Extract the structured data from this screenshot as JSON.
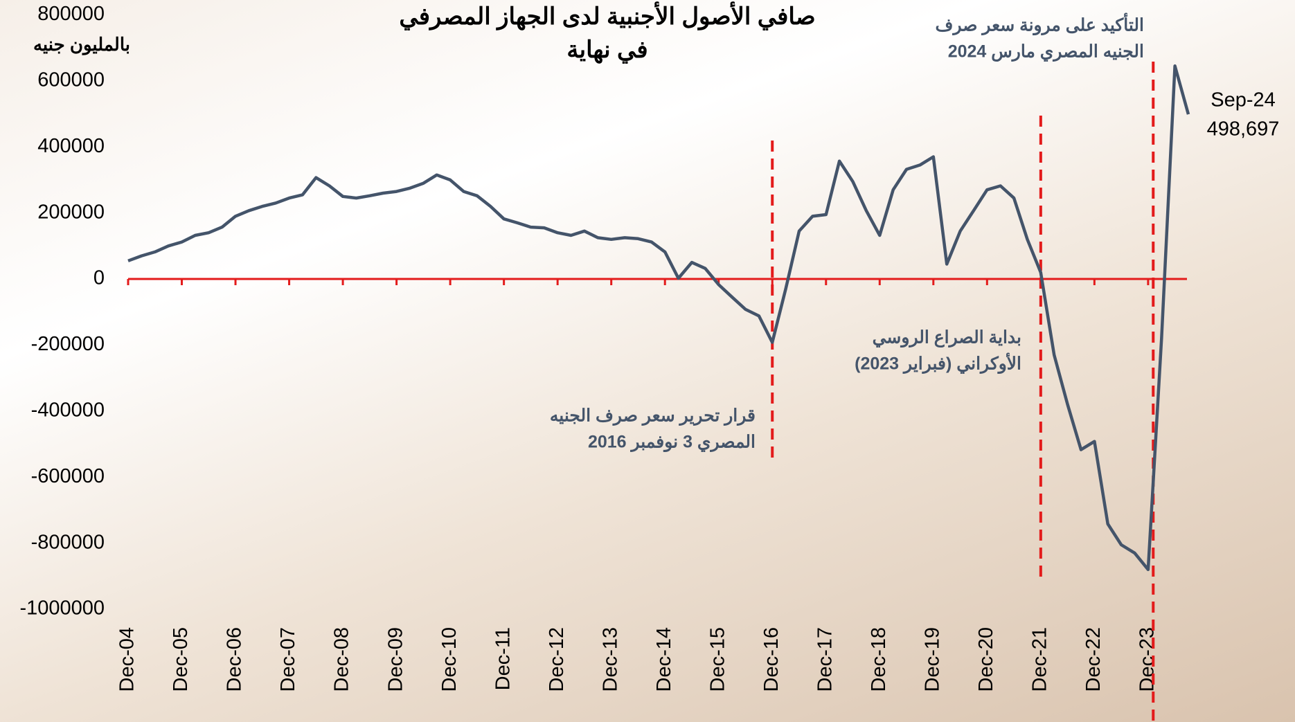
{
  "chart_data": {
    "type": "line",
    "title": [
      "صافي الأصول الأجنبية لدى الجهاز المصرفي",
      "في نهاية"
    ],
    "y_label": "بالمليون جنيه",
    "x": [
      "Dec-04",
      "Mar-05",
      "Jun-05",
      "Sep-05",
      "Dec-05",
      "Mar-06",
      "Jun-06",
      "Sep-06",
      "Dec-06",
      "Mar-07",
      "Jun-07",
      "Sep-07",
      "Dec-07",
      "Mar-08",
      "Jun-08",
      "Sep-08",
      "Dec-08",
      "Mar-09",
      "Jun-09",
      "Sep-09",
      "Dec-09",
      "Mar-10",
      "Jun-10",
      "Sep-10",
      "Dec-10",
      "Mar-11",
      "Jun-11",
      "Sep-11",
      "Dec-11",
      "Mar-12",
      "Jun-12",
      "Sep-12",
      "Dec-12",
      "Mar-13",
      "Jun-13",
      "Sep-13",
      "Dec-13",
      "Mar-14",
      "Jun-14",
      "Sep-14",
      "Dec-14",
      "Mar-15",
      "Jun-15",
      "Sep-15",
      "Dec-15",
      "Mar-16",
      "Jun-16",
      "Sep-16",
      "Dec-16",
      "Mar-17",
      "Jun-17",
      "Sep-17",
      "Dec-17",
      "Mar-18",
      "Jun-18",
      "Sep-18",
      "Dec-18",
      "Mar-19",
      "Jun-19",
      "Sep-19",
      "Dec-19",
      "Mar-20",
      "Jun-20",
      "Sep-20",
      "Dec-20",
      "Mar-21",
      "Jun-21",
      "Sep-21",
      "Dec-21",
      "Mar-22",
      "Jun-22",
      "Sep-22",
      "Dec-22",
      "Mar-23",
      "Jun-23",
      "Sep-23",
      "Dec-23",
      "Mar-24",
      "Jun-24",
      "Sep-24"
    ],
    "series": [
      {
        "color": "#44546a",
        "values": [
          55000,
          70000,
          82000,
          100000,
          112000,
          132000,
          140000,
          157000,
          190000,
          207000,
          220000,
          230000,
          245000,
          255000,
          307000,
          282000,
          250000,
          245000,
          252000,
          260000,
          265000,
          275000,
          290000,
          315000,
          300000,
          265000,
          252000,
          220000,
          182000,
          170000,
          157000,
          155000,
          140000,
          132000,
          145000,
          125000,
          120000,
          125000,
          122000,
          112000,
          82000,
          2000,
          50000,
          32000,
          -17000,
          -55000,
          -92000,
          -112000,
          -192000,
          -30000,
          145000,
          190000,
          195000,
          357000,
          295000,
          207000,
          132000,
          270000,
          332000,
          345000,
          370000,
          45000,
          145000,
          207000,
          270000,
          282000,
          245000,
          120000,
          20000,
          -230000,
          -380000,
          -517000,
          -492000,
          -742000,
          -805000,
          -830000,
          -880000,
          -180000,
          645000,
          498697
        ],
        "value_labels": [
          null,
          null,
          null,
          null,
          null,
          null,
          null,
          null,
          null,
          null,
          null,
          null,
          null,
          null,
          null,
          null,
          null,
          null,
          null,
          null,
          null,
          null,
          null,
          null,
          null,
          null,
          null,
          null,
          null,
          null,
          null,
          null,
          null,
          null,
          null,
          null,
          null,
          null,
          null,
          null,
          null,
          null,
          null,
          null,
          null,
          null,
          null,
          null,
          null,
          null,
          null,
          null,
          null,
          null,
          null,
          null,
          null,
          null,
          null,
          null,
          null,
          null,
          null,
          null,
          null,
          null,
          null,
          null,
          null,
          null,
          null,
          null,
          null,
          null,
          null,
          null,
          null,
          null,
          null,
          "498,697"
        ]
      }
    ],
    "xticks": [
      "Dec-04",
      "Dec-05",
      "Dec-06",
      "Dec-07",
      "Dec-08",
      "Dec-09",
      "Dec-10",
      "Dec-11",
      "Dec-12",
      "Dec-13",
      "Dec-14",
      "Dec-15",
      "Dec-16",
      "Dec-17",
      "Dec-18",
      "Dec-19",
      "Dec-20",
      "Dec-21",
      "Dec-22",
      "Dec-23"
    ],
    "ylim": [
      -1000000,
      800000
    ],
    "yticks": [
      -1000000,
      -800000,
      -600000,
      -400000,
      -200000,
      0,
      200000,
      400000,
      600000,
      800000
    ],
    "zero_line_color": "#e31b1b",
    "annotations": [
      {
        "x": "Dec-16",
        "text": [
          "قرار تحرير سعر صرف الجنيه",
          "المصري 3 نوفمبر 2016"
        ]
      },
      {
        "x": "Dec-21",
        "text": [
          "بداية الصراع الروسي",
          "الأوكراني (فبراير 2023)"
        ]
      },
      {
        "x": "Mar-24",
        "text": [
          "التأكيد على مرونة سعر صرف",
          "الجنيه المصري مارس 2024"
        ]
      }
    ]
  }
}
